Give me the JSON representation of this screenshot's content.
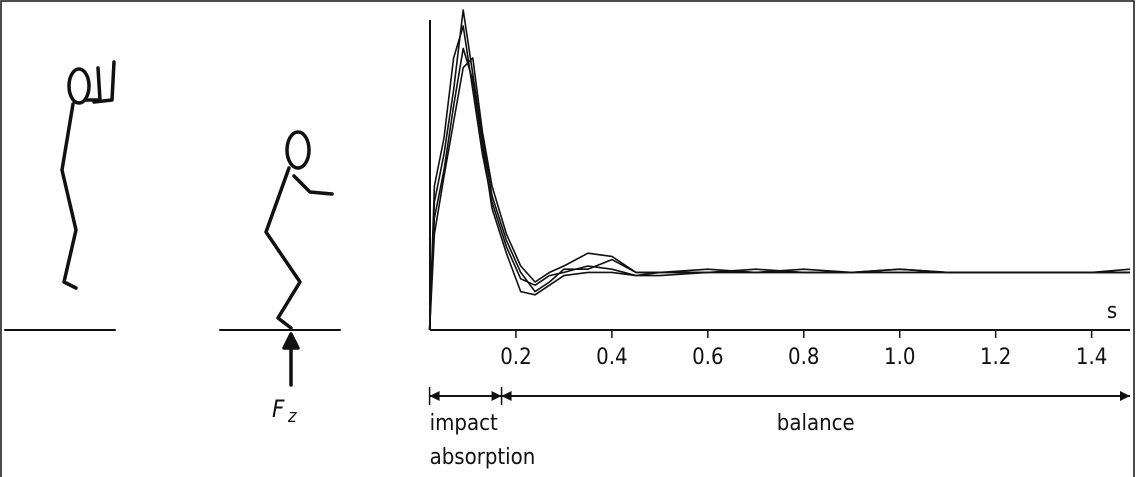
{
  "chart_data": {
    "type": "line",
    "x": [
      0.02,
      0.03,
      0.05,
      0.07,
      0.09,
      0.11,
      0.13,
      0.15,
      0.18,
      0.21,
      0.24,
      0.27,
      0.3,
      0.35,
      0.4,
      0.45,
      0.5,
      0.6,
      0.7,
      0.8,
      0.9,
      1.0,
      1.1,
      1.2,
      1.3,
      1.4,
      1.48
    ],
    "series": [
      {
        "color": "#111111",
        "values": [
          0,
          45,
          60,
          85,
          95,
          75,
          55,
          40,
          26,
          16,
          14,
          17,
          18,
          20,
          19,
          17,
          18,
          18,
          19,
          18,
          18,
          19,
          18,
          18,
          18,
          18,
          19
        ]
      },
      {
        "color": "#111111",
        "values": [
          0,
          40,
          55,
          75,
          100,
          80,
          60,
          42,
          28,
          18,
          12,
          15,
          19,
          19,
          22,
          18,
          18,
          18,
          18,
          19,
          18,
          18,
          18,
          18,
          18,
          18,
          18
        ]
      },
      {
        "color": "#111111",
        "values": [
          0,
          35,
          50,
          70,
          88,
          78,
          58,
          38,
          24,
          12,
          11,
          14,
          17,
          18,
          18,
          17,
          17,
          18,
          18,
          18,
          18,
          18,
          18,
          18,
          18,
          18,
          18
        ]
      },
      {
        "color": "#111111",
        "values": [
          0,
          30,
          48,
          65,
          82,
          85,
          62,
          45,
          30,
          20,
          15,
          18,
          20,
          24,
          23,
          18,
          18,
          19,
          18,
          18,
          18,
          19,
          18,
          18,
          18,
          18,
          18
        ]
      }
    ],
    "xlim": [
      0,
      1.48
    ],
    "ylim": [
      0,
      100
    ],
    "xticks": [
      0.2,
      0.4,
      0.6,
      0.8,
      {
        "value": 1.0,
        "label": "1.0"
      },
      1.2,
      1.4
    ],
    "x_unit": "s",
    "phases": [
      {
        "labels": [
          "impact",
          "absorption"
        ],
        "from": 0.02,
        "to": 0.17
      },
      {
        "labels": [
          "balance"
        ],
        "from": 0.17,
        "to": 1.48
      }
    ]
  },
  "figure": {
    "force_symbol": "F",
    "force_subscript": "z"
  }
}
